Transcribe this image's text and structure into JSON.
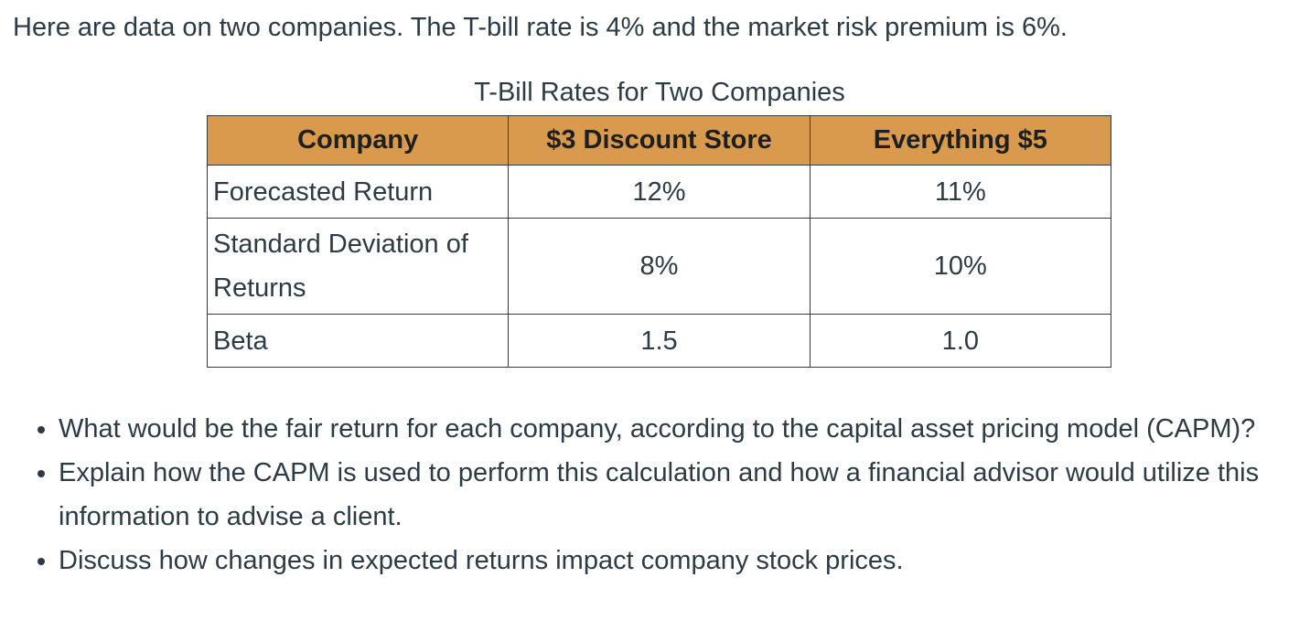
{
  "intro": "Here are data on two companies. The T-bill rate is 4% and the market risk premium is 6%.",
  "table": {
    "caption": "T-Bill Rates for Two Companies",
    "headers": [
      "Company",
      "$3 Discount Store",
      "Everything $5"
    ],
    "rows": [
      {
        "label": "Forecasted Return",
        "values": [
          "12%",
          "11%"
        ]
      },
      {
        "label": "Standard Deviation of Returns",
        "values": [
          "8%",
          "10%"
        ]
      },
      {
        "label": "Beta",
        "values": [
          "1.5",
          "1.0"
        ]
      }
    ],
    "header_color": "#d99a4e"
  },
  "questions": [
    "What would be the fair return for each company, according to the capital asset pricing model (CAPM)?",
    "Explain how the CAPM is used to perform this calculation and how a financial advisor would utilize this information to advise a client.",
    "Discuss how changes in expected returns impact company stock prices."
  ]
}
